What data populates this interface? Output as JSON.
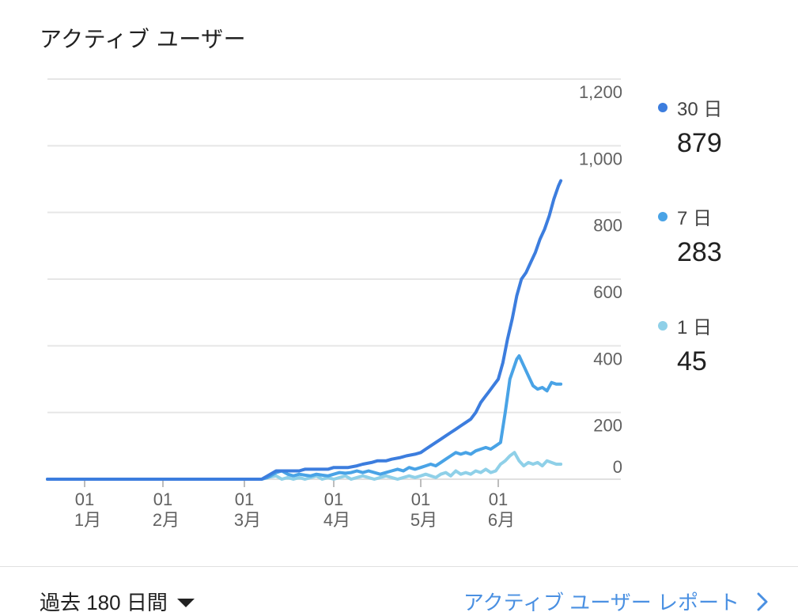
{
  "card": {
    "title": "アクティブ ユーザー"
  },
  "legend": [
    {
      "label": "30 日",
      "value": "879",
      "color": "#3c7dde"
    },
    {
      "label": "7 日",
      "value": "283",
      "color": "#49a3e6"
    },
    {
      "label": "1 日",
      "value": "45",
      "color": "#8fd0e8"
    }
  ],
  "footer": {
    "range_label": "過去 180 日間",
    "report_link": "アクティブ ユーザー レポート",
    "icons": {
      "caret": "caret-down-icon",
      "chevron": "chevron-right-icon"
    }
  },
  "chart_data": {
    "type": "line",
    "ylim": [
      0,
      1200
    ],
    "y_ticks": [
      "1,200",
      "1,000",
      "800",
      "600",
      "400",
      "200",
      "0"
    ],
    "x_ticks": [
      {
        "day": "01",
        "month": "1月"
      },
      {
        "day": "01",
        "month": "2月"
      },
      {
        "day": "01",
        "month": "3月"
      },
      {
        "day": "01",
        "month": "4月"
      },
      {
        "day": "01",
        "month": "5月"
      },
      {
        "day": "01",
        "month": "6月"
      }
    ],
    "grid": true,
    "legend_position": "right",
    "series": [
      {
        "name": "30 日",
        "color": "#3c7dde",
        "points": [
          [
            0,
            0
          ],
          [
            5,
            0
          ],
          [
            10,
            0
          ],
          [
            15,
            0
          ],
          [
            20,
            0
          ],
          [
            25,
            0
          ],
          [
            30,
            0
          ],
          [
            35,
            0
          ],
          [
            40,
            0
          ],
          [
            45,
            0
          ],
          [
            50,
            0
          ],
          [
            55,
            0
          ],
          [
            60,
            0
          ],
          [
            65,
            0
          ],
          [
            67,
            10
          ],
          [
            70,
            25
          ],
          [
            75,
            25
          ],
          [
            78,
            25
          ],
          [
            80,
            30
          ],
          [
            85,
            30
          ],
          [
            88,
            30
          ],
          [
            90,
            35
          ],
          [
            95,
            35
          ],
          [
            98,
            40
          ],
          [
            100,
            45
          ],
          [
            103,
            50
          ],
          [
            105,
            55
          ],
          [
            108,
            55
          ],
          [
            110,
            60
          ],
          [
            113,
            65
          ],
          [
            115,
            70
          ],
          [
            118,
            75
          ],
          [
            120,
            80
          ],
          [
            122,
            90
          ],
          [
            124,
            100
          ],
          [
            126,
            110
          ],
          [
            128,
            120
          ],
          [
            130,
            130
          ],
          [
            132,
            140
          ],
          [
            134,
            150
          ],
          [
            136,
            160
          ],
          [
            138,
            170
          ],
          [
            140,
            180
          ],
          [
            142,
            200
          ],
          [
            144,
            230
          ],
          [
            146,
            250
          ],
          [
            147,
            260
          ],
          [
            149,
            280
          ],
          [
            151,
            300
          ],
          [
            153,
            350
          ],
          [
            155,
            420
          ],
          [
            157,
            480
          ],
          [
            159,
            550
          ],
          [
            161,
            600
          ],
          [
            163,
            620
          ],
          [
            165,
            650
          ],
          [
            167,
            680
          ],
          [
            169,
            720
          ],
          [
            171,
            750
          ],
          [
            173,
            790
          ],
          [
            175,
            840
          ],
          [
            177,
            880
          ],
          [
            178,
            895
          ]
        ]
      },
      {
        "name": "7 日",
        "color": "#49a3e6",
        "points": [
          [
            0,
            0
          ],
          [
            5,
            0
          ],
          [
            10,
            0
          ],
          [
            15,
            0
          ],
          [
            20,
            0
          ],
          [
            25,
            0
          ],
          [
            30,
            0
          ],
          [
            35,
            0
          ],
          [
            40,
            0
          ],
          [
            45,
            0
          ],
          [
            50,
            0
          ],
          [
            55,
            0
          ],
          [
            60,
            0
          ],
          [
            65,
            0
          ],
          [
            67,
            5
          ],
          [
            70,
            20
          ],
          [
            72,
            25
          ],
          [
            74,
            15
          ],
          [
            76,
            10
          ],
          [
            78,
            15
          ],
          [
            80,
            12
          ],
          [
            82,
            10
          ],
          [
            84,
            15
          ],
          [
            86,
            12
          ],
          [
            88,
            10
          ],
          [
            90,
            15
          ],
          [
            92,
            20
          ],
          [
            94,
            18
          ],
          [
            96,
            20
          ],
          [
            98,
            25
          ],
          [
            100,
            20
          ],
          [
            102,
            25
          ],
          [
            104,
            20
          ],
          [
            106,
            15
          ],
          [
            108,
            20
          ],
          [
            110,
            25
          ],
          [
            112,
            30
          ],
          [
            114,
            25
          ],
          [
            116,
            35
          ],
          [
            118,
            30
          ],
          [
            120,
            35
          ],
          [
            122,
            40
          ],
          [
            124,
            45
          ],
          [
            126,
            40
          ],
          [
            128,
            50
          ],
          [
            130,
            60
          ],
          [
            132,
            70
          ],
          [
            134,
            80
          ],
          [
            136,
            75
          ],
          [
            138,
            80
          ],
          [
            140,
            75
          ],
          [
            142,
            85
          ],
          [
            144,
            90
          ],
          [
            146,
            95
          ],
          [
            148,
            90
          ],
          [
            150,
            100
          ],
          [
            152,
            110
          ],
          [
            154,
            200
          ],
          [
            156,
            300
          ],
          [
            158,
            340
          ],
          [
            159,
            360
          ],
          [
            160,
            370
          ],
          [
            162,
            340
          ],
          [
            164,
            310
          ],
          [
            166,
            280
          ],
          [
            168,
            270
          ],
          [
            170,
            275
          ],
          [
            172,
            265
          ],
          [
            174,
            290
          ],
          [
            176,
            285
          ],
          [
            178,
            285
          ]
        ]
      },
      {
        "name": "1 日",
        "color": "#8fd0e8",
        "points": [
          [
            0,
            0
          ],
          [
            5,
            0
          ],
          [
            10,
            0
          ],
          [
            15,
            0
          ],
          [
            20,
            0
          ],
          [
            25,
            0
          ],
          [
            30,
            0
          ],
          [
            35,
            0
          ],
          [
            40,
            0
          ],
          [
            45,
            0
          ],
          [
            50,
            0
          ],
          [
            55,
            0
          ],
          [
            60,
            0
          ],
          [
            65,
            0
          ],
          [
            67,
            5
          ],
          [
            70,
            10
          ],
          [
            72,
            0
          ],
          [
            74,
            5
          ],
          [
            76,
            0
          ],
          [
            78,
            5
          ],
          [
            80,
            0
          ],
          [
            82,
            5
          ],
          [
            84,
            10
          ],
          [
            86,
            0
          ],
          [
            88,
            5
          ],
          [
            90,
            0
          ],
          [
            92,
            5
          ],
          [
            94,
            10
          ],
          [
            96,
            0
          ],
          [
            98,
            5
          ],
          [
            100,
            10
          ],
          [
            102,
            5
          ],
          [
            104,
            0
          ],
          [
            106,
            5
          ],
          [
            108,
            10
          ],
          [
            110,
            5
          ],
          [
            112,
            0
          ],
          [
            114,
            5
          ],
          [
            116,
            10
          ],
          [
            118,
            5
          ],
          [
            120,
            10
          ],
          [
            122,
            15
          ],
          [
            124,
            10
          ],
          [
            126,
            5
          ],
          [
            128,
            15
          ],
          [
            130,
            20
          ],
          [
            132,
            10
          ],
          [
            134,
            25
          ],
          [
            136,
            15
          ],
          [
            138,
            20
          ],
          [
            140,
            15
          ],
          [
            142,
            25
          ],
          [
            144,
            20
          ],
          [
            146,
            30
          ],
          [
            148,
            20
          ],
          [
            150,
            25
          ],
          [
            152,
            45
          ],
          [
            154,
            55
          ],
          [
            156,
            70
          ],
          [
            158,
            80
          ],
          [
            160,
            55
          ],
          [
            162,
            40
          ],
          [
            164,
            50
          ],
          [
            166,
            45
          ],
          [
            168,
            50
          ],
          [
            170,
            40
          ],
          [
            172,
            55
          ],
          [
            174,
            50
          ],
          [
            176,
            45
          ],
          [
            178,
            45
          ]
        ]
      }
    ]
  }
}
